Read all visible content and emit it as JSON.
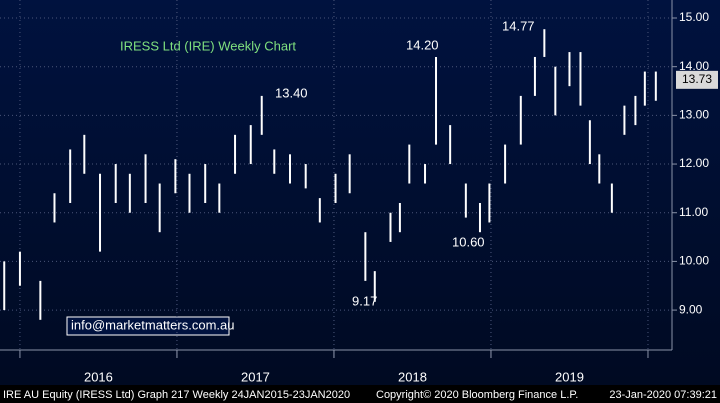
{
  "chart_data": {
    "type": "ohlc",
    "title": "IRESS Ltd (IRE) Weekly Chart",
    "x": [
      2015.9,
      2016.0,
      2016.13,
      2016.22,
      2016.32,
      2016.41,
      2016.51,
      2016.61,
      2016.7,
      2016.8,
      2016.89,
      2016.99,
      2017.08,
      2017.18,
      2017.27,
      2017.37,
      2017.47,
      2017.54,
      2017.62,
      2017.72,
      2017.82,
      2017.91,
      2018.01,
      2018.1,
      2018.2,
      2018.26,
      2018.36,
      2018.42,
      2018.48,
      2018.58,
      2018.65,
      2018.74,
      2018.84,
      2018.93,
      2018.99,
      2019.09,
      2019.19,
      2019.28,
      2019.34,
      2019.41,
      2019.5,
      2019.57,
      2019.63,
      2019.69,
      2019.77,
      2019.85,
      2019.92,
      2019.98,
      2020.05
    ],
    "high": [
      10.0,
      10.2,
      9.6,
      11.4,
      12.3,
      12.6,
      11.8,
      12.0,
      11.8,
      12.2,
      11.6,
      12.1,
      11.8,
      12.0,
      11.6,
      12.6,
      12.8,
      13.4,
      12.3,
      12.2,
      12.0,
      11.3,
      11.8,
      12.2,
      10.6,
      9.8,
      11.0,
      11.2,
      12.4,
      12.0,
      14.2,
      12.8,
      11.6,
      11.2,
      11.6,
      12.4,
      13.4,
      14.2,
      14.77,
      14.0,
      14.3,
      14.3,
      12.9,
      12.2,
      11.6,
      13.2,
      13.4,
      13.9,
      13.9
    ],
    "low": [
      9.0,
      9.5,
      8.8,
      10.8,
      11.2,
      11.8,
      10.2,
      11.2,
      11.0,
      11.2,
      10.6,
      11.4,
      11.0,
      11.2,
      11.0,
      11.8,
      12.0,
      12.6,
      11.8,
      11.6,
      11.5,
      10.8,
      11.2,
      11.4,
      9.6,
      9.17,
      10.4,
      10.6,
      11.6,
      11.6,
      12.4,
      12.0,
      10.9,
      10.6,
      10.8,
      11.6,
      12.4,
      13.4,
      14.2,
      13.0,
      13.6,
      13.2,
      12.0,
      11.6,
      11.0,
      12.6,
      12.8,
      13.2,
      13.3
    ],
    "color": "#ffffff",
    "last": 13.73,
    "annotations": [
      "13.40",
      "14.20",
      "14.77",
      "10.60",
      "9.17"
    ],
    "email": "info@marketmatters.com.au",
    "xlim": [
      2015.873,
      2020.153
    ],
    "xticks": [
      {
        "value": 2016.5,
        "label": "2016"
      },
      {
        "value": 2017.5,
        "label": "2017"
      },
      {
        "value": 2018.5,
        "label": "2018"
      },
      {
        "value": 2019.5,
        "label": "2019"
      }
    ],
    "ylim": [
      8.18,
      15.37
    ],
    "yticks": [
      {
        "value": 9,
        "label": "9.00"
      },
      {
        "value": 10,
        "label": "10.00"
      },
      {
        "value": 11,
        "label": "11.00"
      },
      {
        "value": 12,
        "label": "12.00"
      },
      {
        "value": 13,
        "label": "13.00"
      },
      {
        "value": 14,
        "label": "14.00"
      },
      {
        "value": 15,
        "label": "15.00"
      }
    ],
    "grid": true,
    "footer": {
      "left": "IRE AU Equity (IRESS Ltd) Graph 217  Weekly 24JAN2015-23JAN2020",
      "center": "Copyright© 2020 Bloomberg Finance L.P.",
      "right": "23-Jan-2020 07:39:21"
    }
  }
}
